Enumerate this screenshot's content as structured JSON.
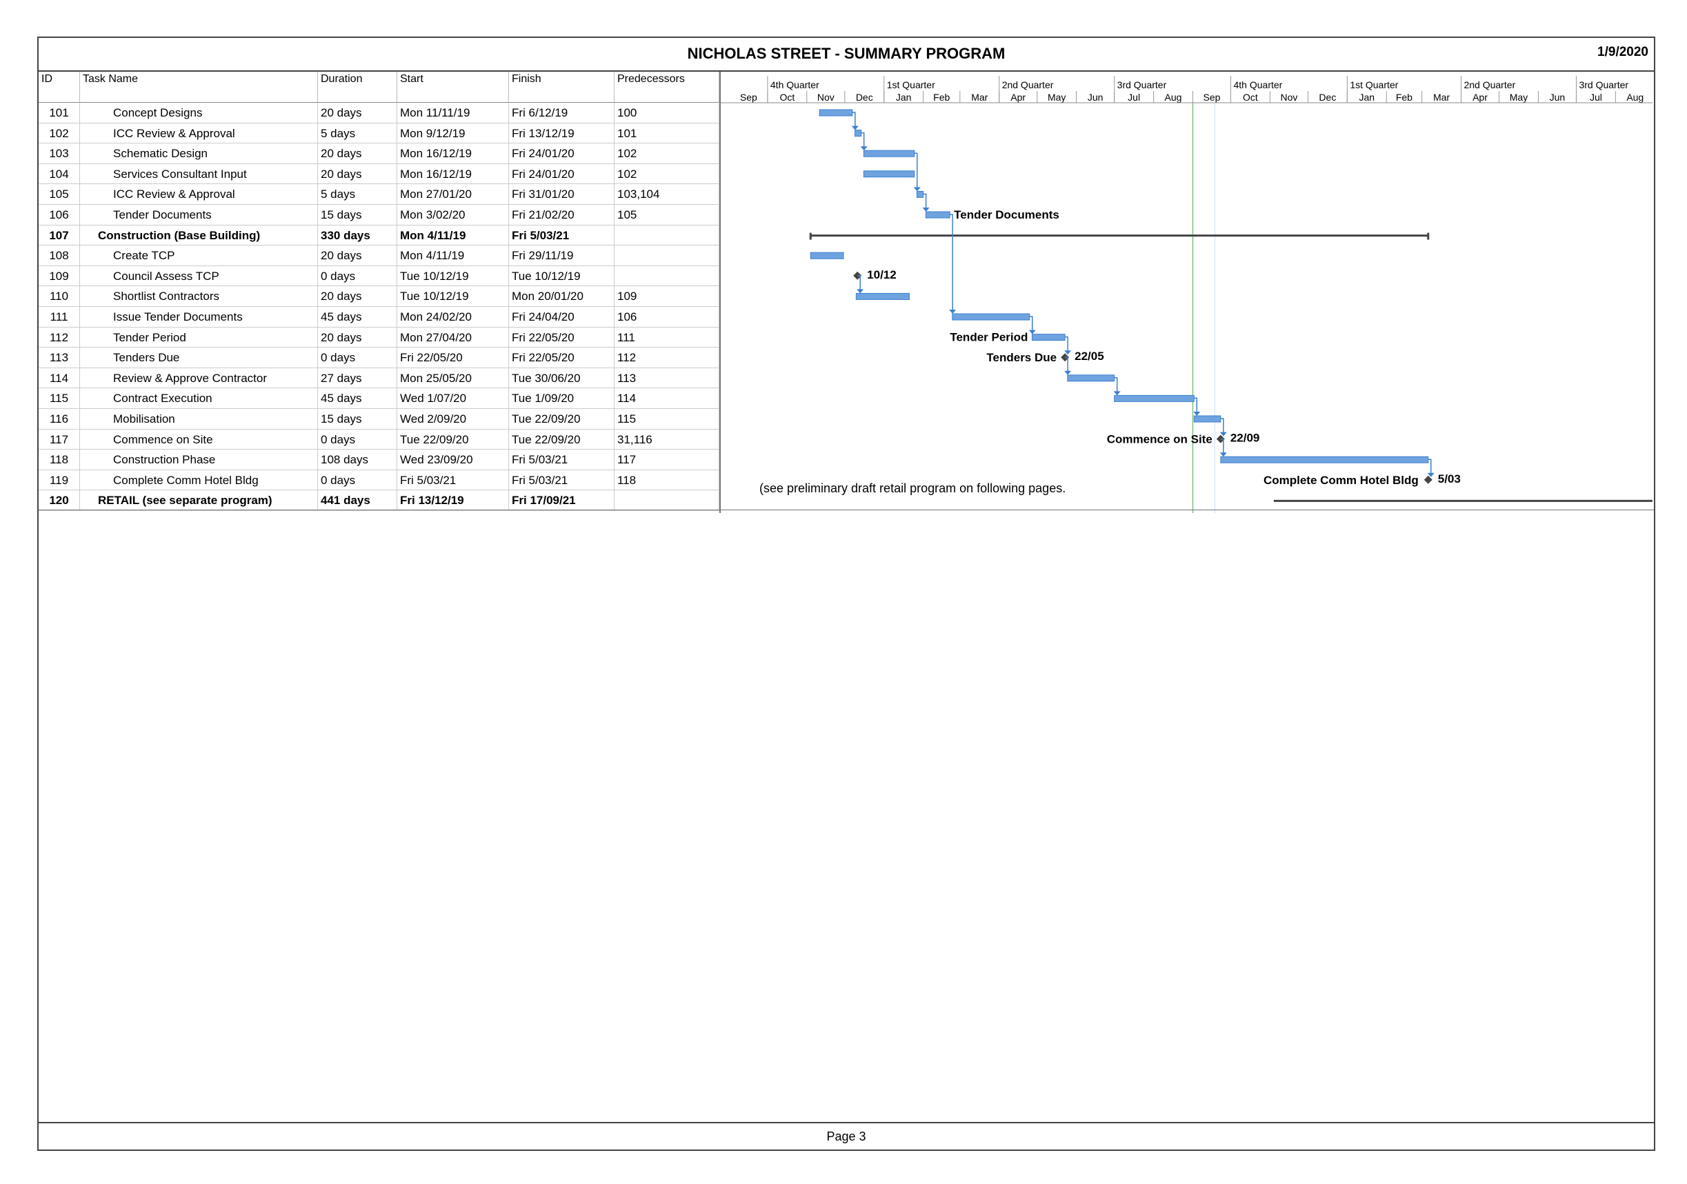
{
  "title": "NICHOLAS STREET - SUMMARY PROGRAM",
  "date": "1/9/2020",
  "footer": "Page 3",
  "columns": {
    "id": "ID",
    "task_name": "Task Name",
    "duration": "Duration",
    "start": "Start",
    "finish": "Finish",
    "predecessors": "Predecessors"
  },
  "timescale": {
    "quarters": [
      "4th Quarter",
      "1st Quarter",
      "2nd Quarter",
      "3rd Quarter",
      "4th Quarter",
      "1st Quarter",
      "2nd Quarter",
      "3rd Quarter"
    ],
    "months": [
      "Sep",
      "Oct",
      "Nov",
      "Dec",
      "Jan",
      "Feb",
      "Mar",
      "Apr",
      "May",
      "Jun",
      "Jul",
      "Aug",
      "Sep",
      "Oct",
      "Nov",
      "Dec",
      "Jan",
      "Feb",
      "Mar",
      "Apr",
      "May",
      "Jun",
      "Jul",
      "Aug"
    ]
  },
  "tasks": [
    {
      "id": "101",
      "name": "Concept Designs",
      "duration": "20 days",
      "start": "Mon 11/11/19",
      "finish": "Fri 6/12/19",
      "pred": "100",
      "bold": false,
      "indent": 2
    },
    {
      "id": "102",
      "name": "ICC Review & Approval",
      "duration": "5 days",
      "start": "Mon 9/12/19",
      "finish": "Fri 13/12/19",
      "pred": "101",
      "bold": false,
      "indent": 2
    },
    {
      "id": "103",
      "name": "Schematic Design",
      "duration": "20 days",
      "start": "Mon 16/12/19",
      "finish": "Fri 24/01/20",
      "pred": "102",
      "bold": false,
      "indent": 2
    },
    {
      "id": "104",
      "name": "Services Consultant Input",
      "duration": "20 days",
      "start": "Mon 16/12/19",
      "finish": "Fri 24/01/20",
      "pred": "102",
      "bold": false,
      "indent": 2
    },
    {
      "id": "105",
      "name": "ICC Review & Approval",
      "duration": "5 days",
      "start": "Mon 27/01/20",
      "finish": "Fri 31/01/20",
      "pred": "103,104",
      "bold": false,
      "indent": 2
    },
    {
      "id": "106",
      "name": "Tender Documents",
      "duration": "15 days",
      "start": "Mon 3/02/20",
      "finish": "Fri 21/02/20",
      "pred": "105",
      "bold": false,
      "indent": 2
    },
    {
      "id": "107",
      "name": "Construction (Base Building)",
      "duration": "330 days",
      "start": "Mon 4/11/19",
      "finish": "Fri 5/03/21",
      "pred": "",
      "bold": true,
      "indent": 1
    },
    {
      "id": "108",
      "name": "Create TCP",
      "duration": "20 days",
      "start": "Mon 4/11/19",
      "finish": "Fri 29/11/19",
      "pred": "",
      "bold": false,
      "indent": 2
    },
    {
      "id": "109",
      "name": "Council Assess TCP",
      "duration": "0 days",
      "start": "Tue 10/12/19",
      "finish": "Tue 10/12/19",
      "pred": "",
      "bold": false,
      "indent": 2
    },
    {
      "id": "110",
      "name": "Shortlist Contractors",
      "duration": "20 days",
      "start": "Tue 10/12/19",
      "finish": "Mon 20/01/20",
      "pred": "109",
      "bold": false,
      "indent": 2
    },
    {
      "id": "111",
      "name": "Issue Tender Documents",
      "duration": "45 days",
      "start": "Mon 24/02/20",
      "finish": "Fri 24/04/20",
      "pred": "106",
      "bold": false,
      "indent": 2
    },
    {
      "id": "112",
      "name": "Tender Period",
      "duration": "20 days",
      "start": "Mon 27/04/20",
      "finish": "Fri 22/05/20",
      "pred": "111",
      "bold": false,
      "indent": 2
    },
    {
      "id": "113",
      "name": "Tenders Due",
      "duration": "0 days",
      "start": "Fri 22/05/20",
      "finish": "Fri 22/05/20",
      "pred": "112",
      "bold": false,
      "indent": 2
    },
    {
      "id": "114",
      "name": "Review & Approve Contractor",
      "duration": "27 days",
      "start": "Mon 25/05/20",
      "finish": "Tue 30/06/20",
      "pred": "113",
      "bold": false,
      "indent": 2
    },
    {
      "id": "115",
      "name": "Contract Execution",
      "duration": "45 days",
      "start": "Wed 1/07/20",
      "finish": "Tue 1/09/20",
      "pred": "114",
      "bold": false,
      "indent": 2
    },
    {
      "id": "116",
      "name": "Mobilisation",
      "duration": "15 days",
      "start": "Wed 2/09/20",
      "finish": "Tue 22/09/20",
      "pred": "115",
      "bold": false,
      "indent": 2
    },
    {
      "id": "117",
      "name": "Commence on Site",
      "duration": "0 days",
      "start": "Tue 22/09/20",
      "finish": "Tue 22/09/20",
      "pred": "31,116",
      "bold": false,
      "indent": 2
    },
    {
      "id": "118",
      "name": "Construction Phase",
      "duration": "108 days",
      "start": "Wed 23/09/20",
      "finish": "Fri 5/03/21",
      "pred": "117",
      "bold": false,
      "indent": 2
    },
    {
      "id": "119",
      "name": "Complete Comm Hotel Bldg",
      "duration": "0 days",
      "start": "Fri 5/03/21",
      "finish": "Fri 5/03/21",
      "pred": "118",
      "bold": false,
      "indent": 2
    },
    {
      "id": "120",
      "name": "RETAIL (see  separate program)",
      "duration": "441 days",
      "start": "Fri 13/12/19",
      "finish": "Fri 17/09/21",
      "pred": "",
      "bold": true,
      "indent": 1
    }
  ],
  "gantt_labels": {
    "tender_documents": "Tender Documents",
    "council_date": "10/12",
    "tender_period": "Tender Period",
    "tenders_due": "Tenders Due",
    "tenders_due_date": "22/05",
    "commence": "Commence on Site",
    "commence_date": "22/09",
    "complete": "Complete Comm Hotel Bldg",
    "complete_date": "5/03",
    "note": "(see preliminary draft retail program on following pages."
  },
  "colors": {
    "bar": "#6fa3e0",
    "bar_dark": "#3c7fd0",
    "link": "#3c7fd0",
    "summary": "#444444",
    "milestone": "#444444",
    "status_line": "#7fbf7f",
    "grid": "#d0d0d0"
  }
}
